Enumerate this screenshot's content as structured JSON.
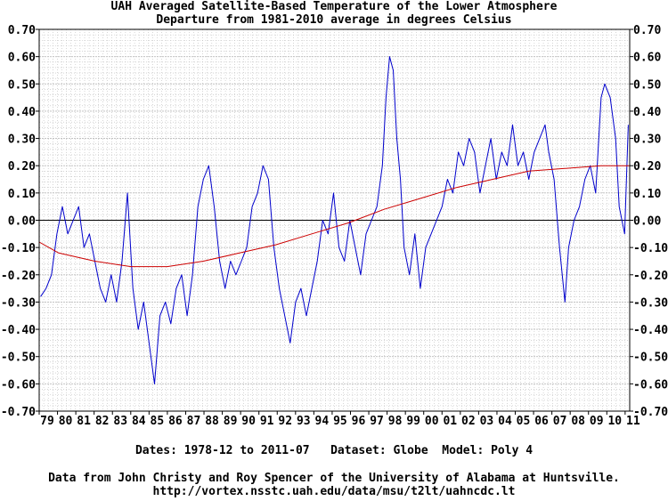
{
  "chart_data": {
    "type": "line",
    "title": "UAH Averaged Satellite-Based Temperature of the Lower Atmosphere",
    "subtitle": "Departure from 1981-2010 average in degrees Celsius",
    "footer_info": "Dates: 1978-12 to 2011-07   Dataset: Globe  Model: Poly 4",
    "credit": "Data from John Christy and Roy Spencer of the University of Alabama at Huntsville.",
    "url": "http://vortex.nsstc.uah.edu/data/msu/t2lt/uahncdc.lt",
    "ylim": [
      -0.7,
      0.7
    ],
    "xlim": [
      1978.92,
      2011.58
    ],
    "yticks": [
      "-0.70",
      "-0.60",
      "-0.50",
      "-0.40",
      "-0.30",
      "-0.20",
      "-0.10",
      "0.00",
      "0.10",
      "0.20",
      "0.30",
      "0.40",
      "0.50",
      "0.60",
      "0.70"
    ],
    "xticks": [
      "79",
      "80",
      "81",
      "82",
      "83",
      "84",
      "85",
      "86",
      "87",
      "88",
      "89",
      "90",
      "91",
      "92",
      "93",
      "94",
      "95",
      "96",
      "97",
      "98",
      "99",
      "00",
      "01",
      "02",
      "03",
      "04",
      "05",
      "06",
      "07",
      "08",
      "09",
      "10",
      "11"
    ],
    "grid": true,
    "colors": {
      "monthly": "#0000cc",
      "trend": "#cc0000",
      "zero_line": "#000000",
      "grid": "#bbbbbb"
    },
    "series": [
      {
        "style": "monthly",
        "x": [
          1979.0,
          1979.3,
          1979.6,
          1979.9,
          1980.2,
          1980.5,
          1980.8,
          1981.1,
          1981.4,
          1981.7,
          1982.0,
          1982.3,
          1982.6,
          1982.9,
          1983.2,
          1983.5,
          1983.8,
          1984.1,
          1984.4,
          1984.7,
          1985.0,
          1985.3,
          1985.6,
          1985.9,
          1986.2,
          1986.5,
          1986.8,
          1987.1,
          1987.4,
          1987.7,
          1988.0,
          1988.3,
          1988.6,
          1988.9,
          1989.2,
          1989.5,
          1989.8,
          1990.1,
          1990.4,
          1990.7,
          1991.0,
          1991.3,
          1991.6,
          1991.9,
          1992.2,
          1992.5,
          1992.8,
          1993.1,
          1993.4,
          1993.7,
          1994.0,
          1994.3,
          1994.6,
          1994.9,
          1995.2,
          1995.5,
          1995.8,
          1996.1,
          1996.4,
          1996.7,
          1997.0,
          1997.3,
          1997.6,
          1997.9,
          1998.1,
          1998.3,
          1998.5,
          1998.7,
          1998.9,
          1999.1,
          1999.4,
          1999.7,
          2000.0,
          2000.3,
          2000.6,
          2000.9,
          2001.2,
          2001.5,
          2001.8,
          2002.1,
          2002.4,
          2002.7,
          2003.0,
          2003.3,
          2003.6,
          2003.9,
          2004.2,
          2004.5,
          2004.8,
          2005.1,
          2005.4,
          2005.7,
          2006.0,
          2006.3,
          2006.6,
          2006.9,
          2007.1,
          2007.4,
          2007.7,
          2008.0,
          2008.2,
          2008.5,
          2008.8,
          2009.1,
          2009.4,
          2009.7,
          2010.0,
          2010.2,
          2010.5,
          2010.8,
          2011.0,
          2011.3,
          2011.5
        ],
        "y": [
          -0.28,
          -0.25,
          -0.2,
          -0.05,
          0.05,
          -0.05,
          0.0,
          0.05,
          -0.1,
          -0.05,
          -0.15,
          -0.25,
          -0.3,
          -0.2,
          -0.3,
          -0.15,
          0.1,
          -0.25,
          -0.4,
          -0.3,
          -0.45,
          -0.6,
          -0.35,
          -0.3,
          -0.38,
          -0.25,
          -0.2,
          -0.35,
          -0.2,
          0.05,
          0.15,
          0.2,
          0.05,
          -0.15,
          -0.25,
          -0.15,
          -0.2,
          -0.15,
          -0.1,
          0.05,
          0.1,
          0.2,
          0.15,
          -0.1,
          -0.25,
          -0.35,
          -0.45,
          -0.3,
          -0.25,
          -0.35,
          -0.25,
          -0.15,
          0.0,
          -0.05,
          0.1,
          -0.1,
          -0.15,
          0.0,
          -0.1,
          -0.2,
          -0.05,
          0.0,
          0.05,
          0.2,
          0.45,
          0.6,
          0.55,
          0.3,
          0.15,
          -0.1,
          -0.2,
          -0.05,
          -0.25,
          -0.1,
          -0.05,
          0.0,
          0.05,
          0.15,
          0.1,
          0.25,
          0.2,
          0.3,
          0.25,
          0.1,
          0.2,
          0.3,
          0.15,
          0.25,
          0.2,
          0.35,
          0.2,
          0.25,
          0.15,
          0.25,
          0.3,
          0.35,
          0.25,
          0.15,
          -0.1,
          -0.3,
          -0.1,
          0.0,
          0.05,
          0.15,
          0.2,
          0.1,
          0.45,
          0.5,
          0.45,
          0.3,
          0.05,
          -0.05,
          0.35
        ]
      },
      {
        "style": "trend",
        "x": [
          1978.92,
          1980,
          1982,
          1984,
          1986,
          1988,
          1990,
          1992,
          1994,
          1996,
          1998,
          2000,
          2002,
          2004,
          2006,
          2008,
          2010,
          2011.58
        ],
        "y": [
          -0.08,
          -0.12,
          -0.15,
          -0.17,
          -0.17,
          -0.15,
          -0.12,
          -0.09,
          -0.05,
          -0.01,
          0.04,
          0.08,
          0.12,
          0.15,
          0.18,
          0.19,
          0.2,
          0.2
        ]
      }
    ]
  }
}
